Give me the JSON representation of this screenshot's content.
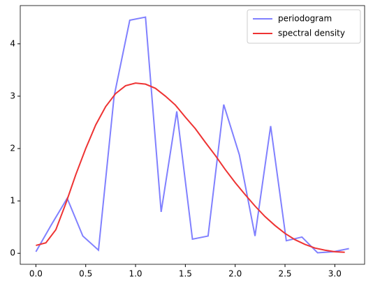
{
  "chart_data": {
    "type": "line",
    "xlim": [
      -0.157,
      3.299
    ],
    "ylim": [
      -0.21,
      4.73
    ],
    "xticks": [
      {
        "value": 0,
        "label": "0.0"
      },
      0.5,
      {
        "value": 1,
        "label": "1.0"
      },
      1.5,
      {
        "value": 2,
        "label": "2.0"
      },
      2.5,
      {
        "value": 3,
        "label": "3.0"
      }
    ],
    "yticks": [
      0,
      1,
      2,
      3,
      4
    ],
    "legend": "upper right",
    "series": [
      {
        "name": "periodogram",
        "color": "#8080ff",
        "x": [
          0,
          0.157,
          0.314,
          0.471,
          0.628,
          0.785,
          0.942,
          1.1,
          1.257,
          1.414,
          1.571,
          1.728,
          1.885,
          2.042,
          2.199,
          2.356,
          2.513,
          2.67,
          2.827,
          2.985,
          3.142
        ],
        "values": [
          0.03,
          0.55,
          1.05,
          0.33,
          0.06,
          3.0,
          4.45,
          4.51,
          0.79,
          2.71,
          0.27,
          0.33,
          2.84,
          1.88,
          0.33,
          2.43,
          0.24,
          0.31,
          0.01,
          0.03,
          0.09
        ]
      },
      {
        "name": "spectral density",
        "color": "#ee3333",
        "x": [
          0,
          0.1,
          0.2,
          0.3,
          0.4,
          0.5,
          0.6,
          0.7,
          0.8,
          0.9,
          1.0,
          1.1,
          1.2,
          1.3,
          1.4,
          1.5,
          1.6,
          1.7,
          1.8,
          1.9,
          2.0,
          2.1,
          2.2,
          2.3,
          2.4,
          2.5,
          2.6,
          2.7,
          2.8,
          2.9,
          3.0,
          3.1
        ],
        "values": [
          0.15,
          0.2,
          0.45,
          0.95,
          1.5,
          2.0,
          2.45,
          2.8,
          3.05,
          3.2,
          3.25,
          3.23,
          3.15,
          3.0,
          2.83,
          2.6,
          2.38,
          2.12,
          1.87,
          1.6,
          1.35,
          1.12,
          0.9,
          0.7,
          0.53,
          0.38,
          0.26,
          0.17,
          0.1,
          0.06,
          0.03,
          0.02
        ]
      }
    ]
  }
}
